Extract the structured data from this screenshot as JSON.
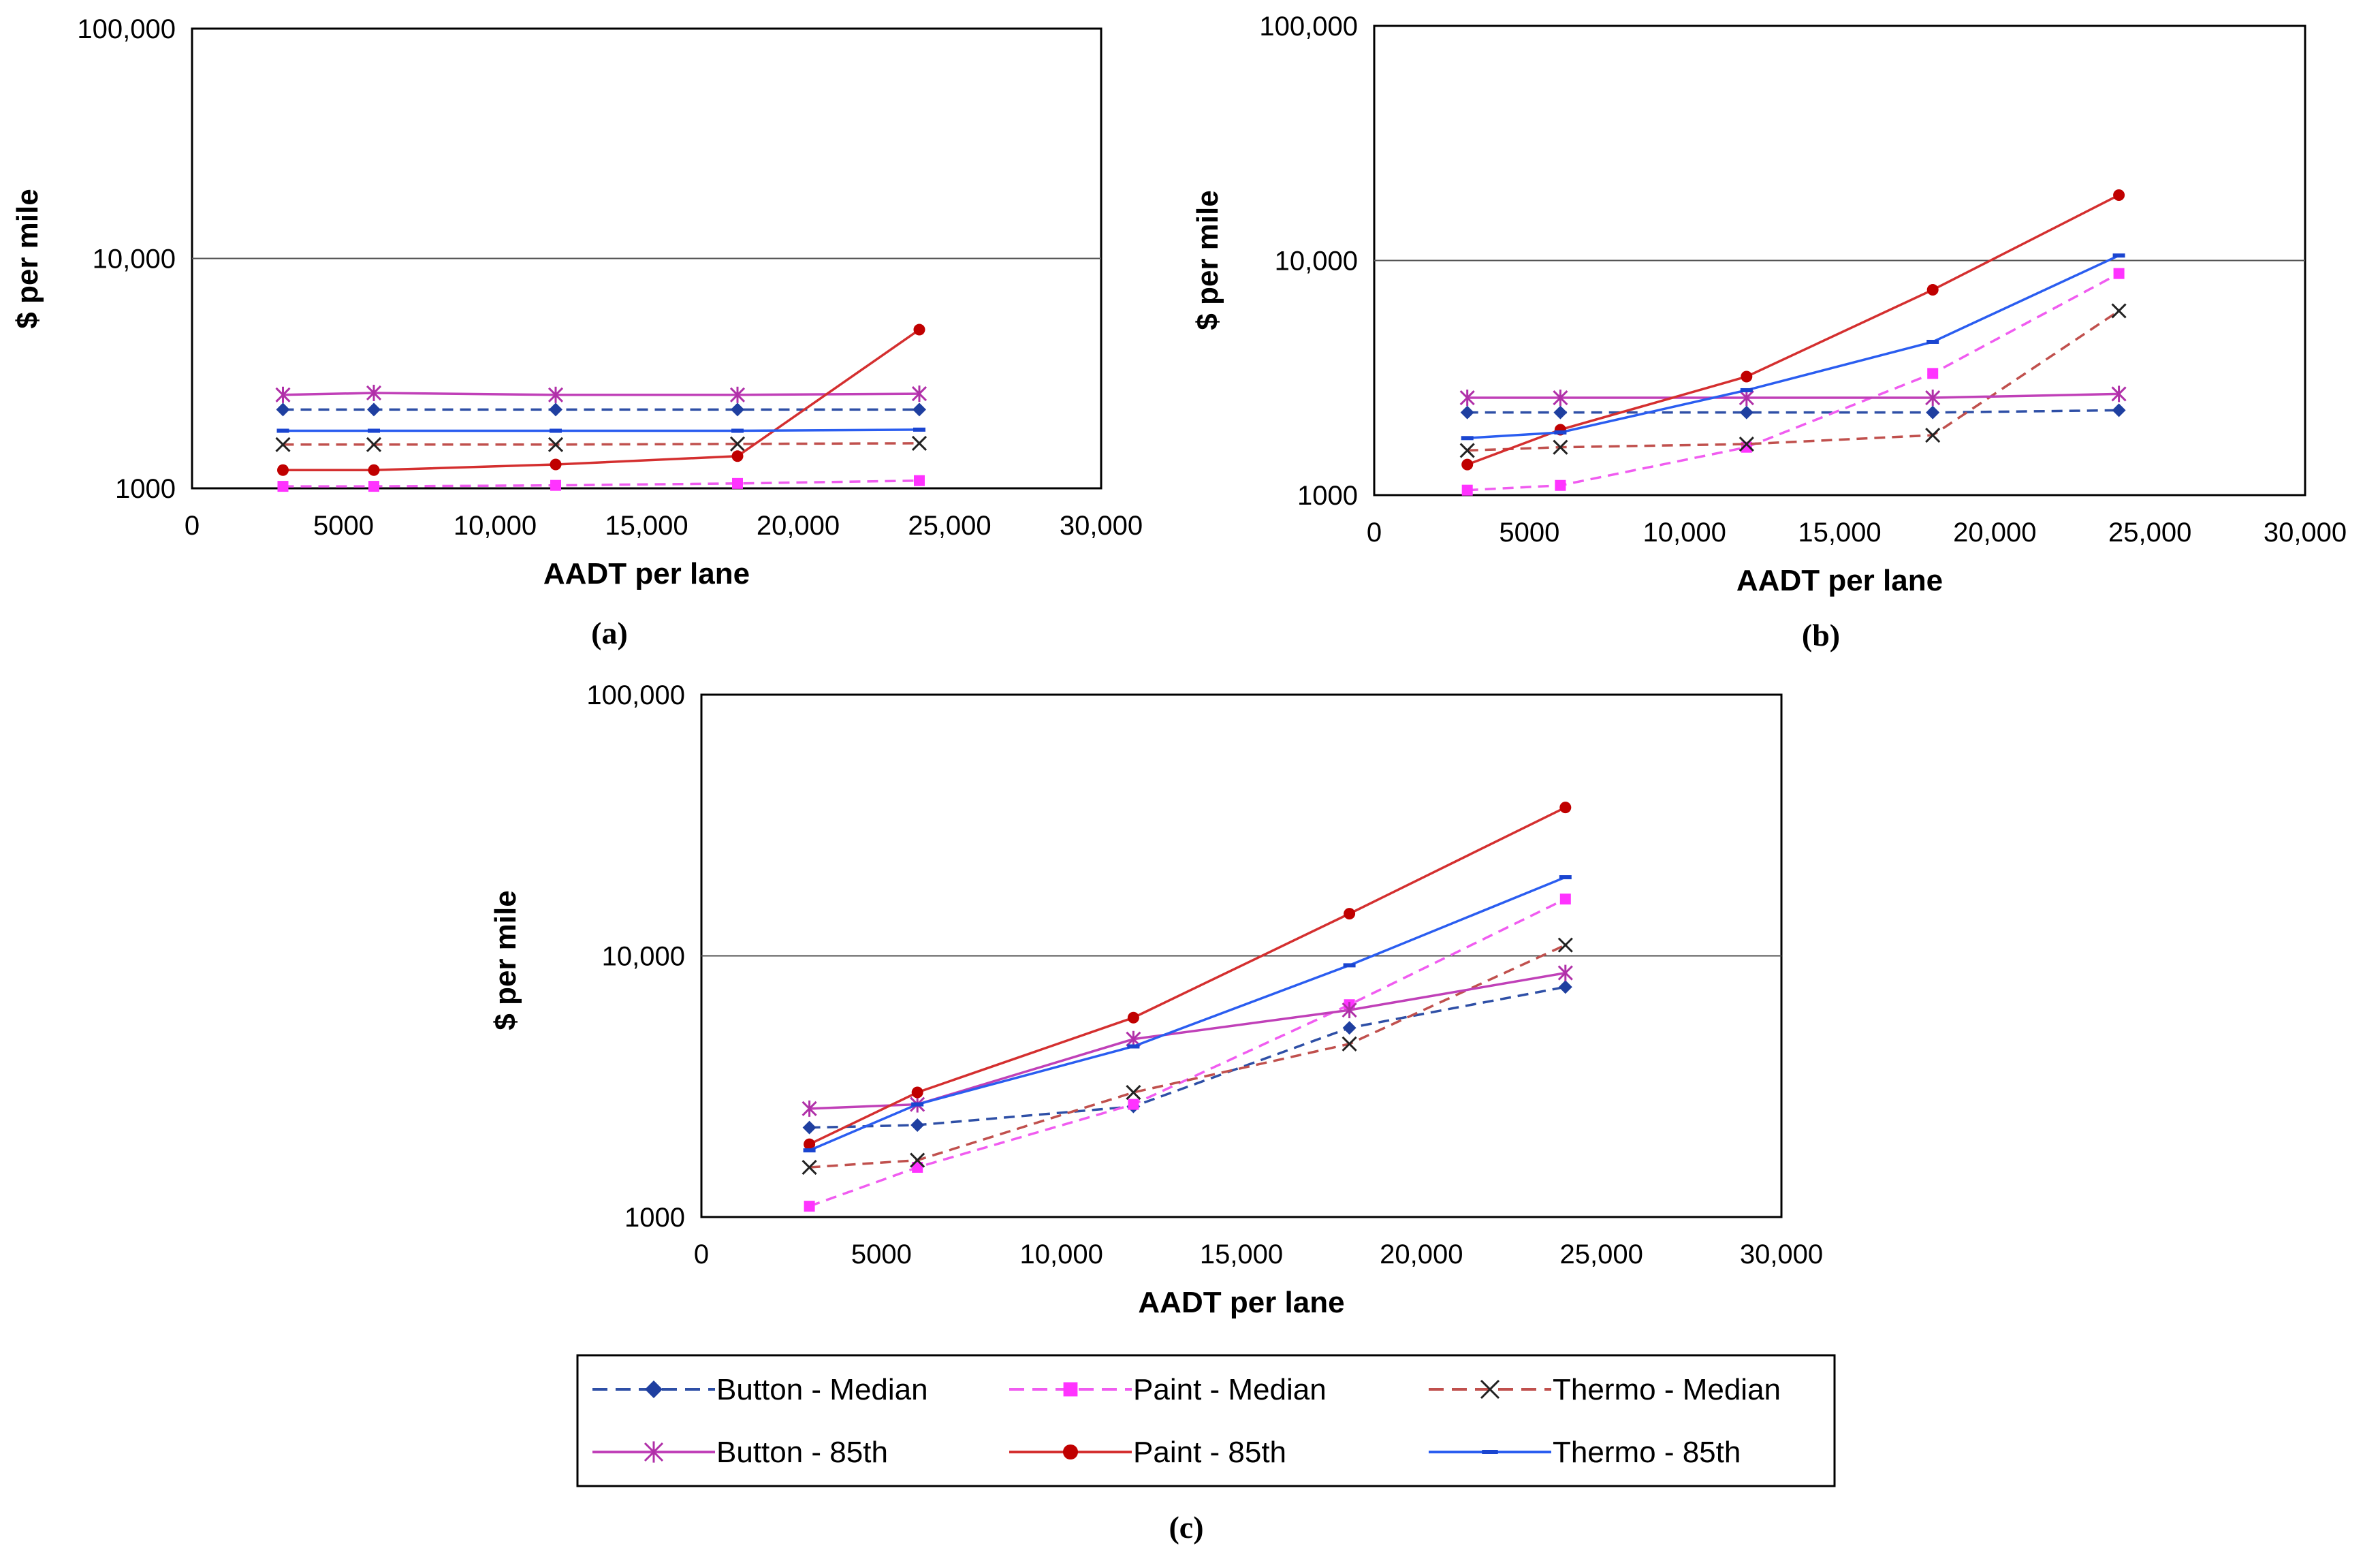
{
  "chart_data": [
    {
      "type": "line",
      "caption": "(a)",
      "xlabel": "AADT per lane",
      "ylabel": "$ per mile",
      "xlim": [
        0,
        30000
      ],
      "ylim": [
        1000,
        100000
      ],
      "yscale": "log",
      "xticks": [
        "0",
        "5000",
        "10,000",
        "15,000",
        "20,000",
        "25,000",
        "30,000"
      ],
      "yticks": [
        "1000",
        "10,000",
        "100,000"
      ],
      "x": [
        3000,
        6000,
        12000,
        18000,
        24000
      ],
      "series": [
        {
          "key": "button_median",
          "values": [
            2200,
            2200,
            2200,
            2200,
            2200
          ]
        },
        {
          "key": "paint_median",
          "values": [
            1020,
            1020,
            1030,
            1050,
            1080
          ]
        },
        {
          "key": "thermo_median",
          "values": [
            1550,
            1550,
            1550,
            1560,
            1570
          ]
        },
        {
          "key": "button_85",
          "values": [
            2550,
            2600,
            2550,
            2550,
            2580
          ]
        },
        {
          "key": "paint_85",
          "values": [
            1200,
            1200,
            1270,
            1380,
            4900
          ]
        },
        {
          "key": "thermo_85",
          "values": [
            1780,
            1780,
            1780,
            1780,
            1800
          ]
        }
      ]
    },
    {
      "type": "line",
      "caption": "(b)",
      "xlabel": "AADT per lane",
      "ylabel": "$ per mile",
      "xlim": [
        0,
        30000
      ],
      "ylim": [
        1000,
        100000
      ],
      "yscale": "log",
      "xticks": [
        "0",
        "5000",
        "10,000",
        "15,000",
        "20,000",
        "25,000",
        "30,000"
      ],
      "yticks": [
        "1000",
        "10,000",
        "100,000"
      ],
      "x": [
        3000,
        6000,
        12000,
        18000,
        24000
      ],
      "series": [
        {
          "key": "button_median",
          "values": [
            2250,
            2250,
            2250,
            2250,
            2300
          ]
        },
        {
          "key": "paint_median",
          "values": [
            1050,
            1100,
            1600,
            3300,
            8800
          ]
        },
        {
          "key": "thermo_median",
          "values": [
            1550,
            1600,
            1650,
            1800,
            6100
          ]
        },
        {
          "key": "button_85",
          "values": [
            2600,
            2600,
            2600,
            2600,
            2700
          ]
        },
        {
          "key": "paint_85",
          "values": [
            1350,
            1900,
            3200,
            7500,
            19000
          ]
        },
        {
          "key": "thermo_85",
          "values": [
            1750,
            1850,
            2800,
            4500,
            10500
          ]
        }
      ]
    },
    {
      "type": "line",
      "caption": "(c)",
      "xlabel": "AADT per lane",
      "ylabel": "$ per mile",
      "xlim": [
        0,
        30000
      ],
      "ylim": [
        1000,
        100000
      ],
      "yscale": "log",
      "xticks": [
        "0",
        "5000",
        "10,000",
        "15,000",
        "20,000",
        "25,000",
        "30,000"
      ],
      "yticks": [
        "1000",
        "10,000",
        "100,000"
      ],
      "x": [
        3000,
        6000,
        12000,
        18000,
        24000
      ],
      "series": [
        {
          "key": "button_median",
          "values": [
            2200,
            2250,
            2650,
            5300,
            7600
          ]
        },
        {
          "key": "paint_median",
          "values": [
            1100,
            1550,
            2700,
            6500,
            16500
          ]
        },
        {
          "key": "thermo_median",
          "values": [
            1550,
            1650,
            3000,
            4600,
            11000
          ]
        },
        {
          "key": "button_85",
          "values": [
            2600,
            2700,
            4800,
            6200,
            8600
          ]
        },
        {
          "key": "paint_85",
          "values": [
            1900,
            3000,
            5800,
            14500,
            37000
          ]
        },
        {
          "key": "thermo_85",
          "values": [
            1800,
            2700,
            4500,
            9200,
            20000
          ]
        }
      ]
    }
  ],
  "legend": {
    "placement": "bottom-center",
    "entries": [
      {
        "key": "button_median",
        "label": "Button - Median",
        "color": "#2E4FA6",
        "dashed": true,
        "marker": "diamond",
        "marker_color": "#1F3FA0"
      },
      {
        "key": "paint_median",
        "label": "Paint - Median",
        "color": "#F05CF0",
        "dashed": true,
        "marker": "square",
        "marker_color": "#FF33FF"
      },
      {
        "key": "thermo_median",
        "label": "Thermo - Median",
        "color": "#C0504D",
        "dashed": true,
        "marker": "x",
        "marker_color": "#222222"
      },
      {
        "key": "button_85",
        "label": "Button - 85th",
        "color": "#C040B8",
        "dashed": false,
        "marker": "star",
        "marker_color": "#B030A8"
      },
      {
        "key": "paint_85",
        "label": "Paint - 85th",
        "color": "#D42F2F",
        "dashed": false,
        "marker": "circle",
        "marker_color": "#C00000"
      },
      {
        "key": "thermo_85",
        "label": "Thermo - 85th",
        "color": "#2A5DF0",
        "dashed": false,
        "marker": "dash",
        "marker_color": "#1A45D0"
      }
    ]
  }
}
